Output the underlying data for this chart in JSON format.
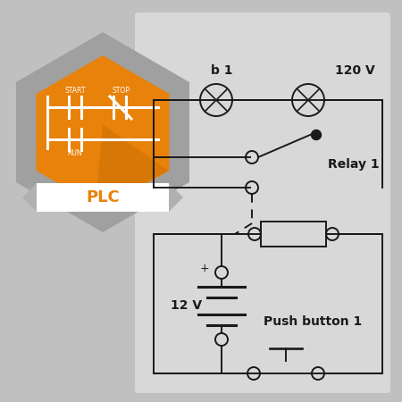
{
  "bg_outer": "#c0c0c0",
  "bg_panel": "#d4d4d4",
  "hex_color_outer": "#a0a0a0",
  "hex_color_inner": "#e8820a",
  "hex_shadow_color": "#c06a00",
  "banner_color": "#ffffff",
  "banner_notch_color": "#b8b8b8",
  "banner_text": "PLC",
  "banner_text_color": "#e8820a",
  "label_120V": "120 V",
  "label_bulb1": "b 1",
  "label_relay1": "Relay 1",
  "label_12V": "12 V",
  "label_plus": "+",
  "label_pushbutton": "Push button 1",
  "line_color": "#1a1a1a",
  "white": "#ffffff"
}
